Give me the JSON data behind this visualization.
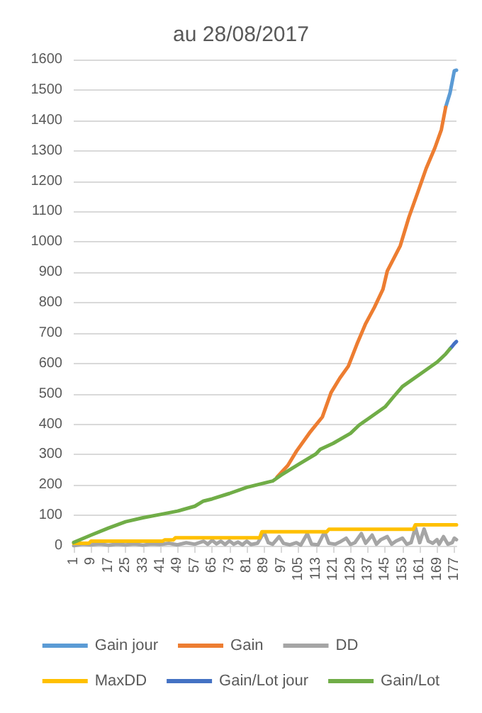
{
  "chart_data": {
    "type": "line",
    "title": "au 28/08/2017",
    "xlim": [
      1,
      178
    ],
    "xticks": [
      1,
      9,
      17,
      25,
      33,
      41,
      49,
      57,
      65,
      73,
      81,
      89,
      97,
      105,
      113,
      121,
      129,
      137,
      145,
      153,
      161,
      169,
      177
    ],
    "ylim": [
      0,
      1600
    ],
    "yticks": [
      0,
      100,
      200,
      300,
      400,
      500,
      600,
      700,
      800,
      900,
      1000,
      1100,
      1200,
      1300,
      1400,
      1500,
      1600
    ],
    "grid": "y",
    "legend": "bottom",
    "marker": "none",
    "line_style": "solid",
    "series": [
      {
        "name": "Gain jour",
        "color": "#5b9bd5",
        "x": [
          173,
          175,
          177,
          178
        ],
        "values": [
          1443,
          1490,
          1563,
          1565
        ]
      },
      {
        "name": "Gain",
        "color": "#ed7d31",
        "x": [
          95,
          100,
          104,
          110,
          116,
          120,
          124,
          128,
          132,
          136,
          140,
          144,
          146,
          152,
          156,
          160,
          164,
          168,
          171,
          173
        ],
        "values": [
          226,
          264,
          311,
          371,
          424,
          504,
          551,
          591,
          664,
          731,
          784,
          844,
          904,
          987,
          1081,
          1161,
          1242,
          1309,
          1369,
          1443
        ]
      },
      {
        "name": "DD",
        "color": "#a5a5a5",
        "x": [
          1,
          5,
          9,
          13,
          17,
          21,
          25,
          29,
          33,
          37,
          41,
          45,
          49,
          53,
          57,
          61,
          63,
          65,
          67,
          69,
          71,
          73,
          75,
          77,
          79,
          81,
          83,
          86,
          89,
          91,
          93,
          96,
          98,
          101,
          104,
          106,
          109,
          111,
          114,
          117,
          119,
          122,
          124,
          127,
          129,
          131,
          134,
          136,
          139,
          141,
          143,
          146,
          148,
          150,
          153,
          155,
          157,
          159,
          161,
          163,
          165,
          167,
          169,
          170,
          172,
          174,
          176,
          177,
          178
        ],
        "values": [
          0,
          5,
          3,
          6,
          2,
          5,
          3,
          6,
          2,
          6,
          4,
          8,
          3,
          10,
          5,
          15,
          5,
          18,
          6,
          15,
          4,
          16,
          5,
          12,
          3,
          15,
          4,
          8,
          45,
          10,
          5,
          30,
          8,
          3,
          10,
          2,
          40,
          5,
          3,
          45,
          8,
          5,
          12,
          25,
          4,
          10,
          40,
          8,
          35,
          5,
          20,
          30,
          5,
          15,
          25,
          5,
          10,
          60,
          10,
          55,
          15,
          8,
          20,
          5,
          30,
          5,
          10,
          25,
          20
        ]
      },
      {
        "name": "MaxDD",
        "color": "#ffc000",
        "x": [
          1,
          8,
          9,
          42,
          43,
          47,
          48,
          87,
          88,
          118,
          119,
          158,
          159,
          178
        ],
        "values": [
          8,
          8,
          15,
          15,
          19,
          19,
          26,
          26,
          46,
          46,
          54,
          54,
          69,
          69
        ]
      },
      {
        "name": "Gain/Lot jour",
        "color": "#4472c4",
        "x": [
          175,
          176,
          177,
          178
        ],
        "values": [
          648,
          656,
          665,
          672
        ]
      },
      {
        "name": "Gain/Lot",
        "color": "#70ad47",
        "x": [
          1,
          9,
          17,
          25,
          33,
          41,
          49,
          57,
          61,
          65,
          73,
          81,
          89,
          93,
          97,
          105,
          113,
          115,
          121,
          129,
          133,
          137,
          145,
          149,
          153,
          161,
          169,
          173,
          175
        ],
        "values": [
          11,
          35,
          58,
          79,
          92,
          103,
          114,
          130,
          147,
          154,
          172,
          192,
          206,
          213,
          233,
          268,
          302,
          317,
          337,
          370,
          397,
          417,
          457,
          491,
          524,
          564,
          604,
          631,
          648
        ]
      }
    ]
  }
}
